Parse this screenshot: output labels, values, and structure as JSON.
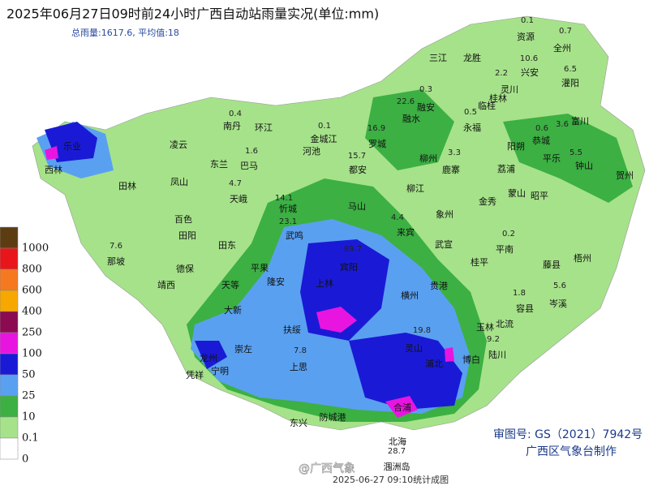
{
  "header": {
    "title": "2025年06月27日09时前24小时广西自动站雨量实况(单位:mm)",
    "subtitle": "总雨量:1617.6, 平均值:18"
  },
  "legend": {
    "levels": [
      {
        "label": "1000",
        "color": "#5c3d12"
      },
      {
        "label": "800",
        "color": "#e8161b"
      },
      {
        "label": "600",
        "color": "#f47920"
      },
      {
        "label": "400",
        "color": "#f6a800"
      },
      {
        "label": "250",
        "color": "#8b0a50"
      },
      {
        "label": "100",
        "color": "#e815e0"
      },
      {
        "label": "50",
        "color": "#1a1ad6"
      },
      {
        "label": "25",
        "color": "#5aa0f0"
      },
      {
        "label": "10",
        "color": "#3cb043"
      },
      {
        "label": "0.1",
        "color": "#a6e28a"
      },
      {
        "label": "0",
        "color": "#ffffff"
      }
    ]
  },
  "places": [
    "三江",
    "龙胜",
    "资源",
    "全州",
    "兴安",
    "灌阳",
    "灵川",
    "桂林",
    "临桂",
    "融安",
    "融水",
    "永福",
    "阳朔",
    "恭城",
    "富川",
    "钟山",
    "贺州",
    "平乐",
    "荔浦",
    "蒙山",
    "昭平",
    "鹿寨",
    "罗城",
    "柳州",
    "柳江",
    "象州",
    "金秀",
    "武宣",
    "来宾",
    "平南",
    "藤县",
    "梧州",
    "岑溪",
    "容县",
    "北流",
    "玉林",
    "桂平",
    "贵港",
    "陆川",
    "博白",
    "浦北",
    "灵山",
    "横州",
    "合浦",
    "北海",
    "涠洲岛",
    "防城港",
    "东兴",
    "上思",
    "宁明",
    "凭祥",
    "龙州",
    "崇左",
    "大新",
    "天等",
    "扶绥",
    "隆安",
    "平果",
    "德保",
    "靖西",
    "那坡",
    "田东",
    "田阳",
    "百色",
    "田林",
    "西林",
    "乐业",
    "凌云",
    "凤山",
    "东兰",
    "巴马",
    "天峨",
    "南丹",
    "环江",
    "金城江",
    "河池",
    "都安",
    "忻城",
    "马山",
    "武鸣",
    "上林",
    "宾阳"
  ],
  "readings": [
    "0.1",
    "0.7",
    "10.6",
    "6.5",
    "2.2",
    "0.3",
    "22.6",
    "0.5",
    "16.9",
    "15.7",
    "3.3",
    "0.6",
    "3.6",
    "5.5",
    "14.1",
    "23.1",
    "4.4",
    "89.7",
    "7.6",
    "0.4",
    "1.6",
    "4.7",
    "0.1",
    "5.6",
    "28.7",
    "0.2",
    "19.8",
    "9.2",
    "1.8",
    "7.8"
  ],
  "review_number": "审图号: GS（2021）7942号",
  "maker": "广西区气象台制作",
  "watermark": "@广西气象",
  "footer": "2025-06-27 09:10统计成图"
}
